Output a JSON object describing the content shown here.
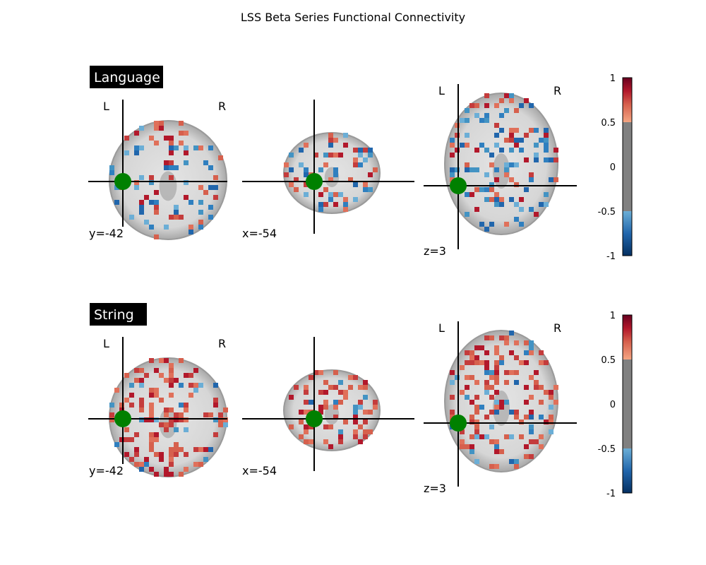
{
  "chart_data": {
    "type": "heatmap",
    "title": "LSS Beta Series Functional Connectivity",
    "panels": [
      {
        "title": "Language",
        "cut_coords": {
          "y": -42,
          "x": -54,
          "z": 3
        },
        "cut_labels": [
          "y=-42",
          "x=-54",
          "z=3"
        ],
        "orientation_labels": {
          "left": "L",
          "right": "R"
        },
        "seed_marker_color": "#008000",
        "colorbar": {
          "vmin": -1,
          "vmax": 1,
          "threshold": 0.5,
          "tick_labels": [
            "1",
            "0.5",
            "0",
            "-0.5",
            "-1"
          ]
        },
        "dominant_sign": "mixed"
      },
      {
        "title": "String",
        "cut_coords": {
          "y": -42,
          "x": -54,
          "z": 3
        },
        "cut_labels": [
          "y=-42",
          "x=-54",
          "z=3"
        ],
        "orientation_labels": {
          "left": "L",
          "right": "R"
        },
        "seed_marker_color": "#008000",
        "colorbar": {
          "vmin": -1,
          "vmax": 1,
          "threshold": 0.5,
          "tick_labels": [
            "1",
            "0.5",
            "0",
            "-0.5",
            "-1"
          ]
        },
        "dominant_sign": "positive"
      }
    ],
    "colormap": {
      "negative": [
        "#053061",
        "#2166ac",
        "#6baed6"
      ],
      "positive": [
        "#f4a582",
        "#d6604d",
        "#b2182b",
        "#67001f"
      ],
      "thresholded": "#808080"
    }
  }
}
